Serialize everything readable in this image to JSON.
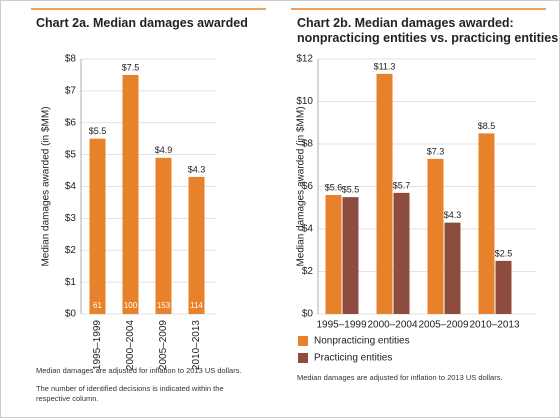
{
  "chart_data": [
    {
      "type": "bar",
      "title": [
        "Chart 2a. Median damages awarded"
      ],
      "ylabel": "Median damages awarded (in $MM)",
      "categories": [
        "1995–1999",
        "2000–2004",
        "2005–2009",
        "2010–2013"
      ],
      "values": [
        5.5,
        7.5,
        4.9,
        4.3
      ],
      "value_labels": [
        "$5.5",
        "$7.5",
        "$4.9",
        "$4.3"
      ],
      "counts": [
        61,
        100,
        153,
        114
      ],
      "color": "#e8822a",
      "ylim": [
        0,
        8
      ],
      "yticks": [
        {
          "value": 0,
          "label": "$0"
        },
        {
          "value": 1,
          "label": "$1"
        },
        {
          "value": 2,
          "label": "$2"
        },
        {
          "value": 3,
          "label": "$3"
        },
        {
          "value": 4,
          "label": "$4"
        },
        {
          "value": 5,
          "label": "$5"
        },
        {
          "value": 6,
          "label": "$6"
        },
        {
          "value": 7,
          "label": "$7"
        },
        {
          "value": 8,
          "label": "$8"
        }
      ],
      "grid": true,
      "notes": [
        "Median damages are adjusted for inflation to 2013 US dollars.",
        "The number of identified decisions is indicated within the respective column."
      ]
    },
    {
      "type": "grouped_bar",
      "title": [
        "Chart 2b. Median damages awarded:",
        "nonpracticing entities vs. practicing entities"
      ],
      "ylabel": "Median damages awarded (in $MM)",
      "categories": [
        "1995–1999",
        "2000–2004",
        "2005–2009",
        "2010–2013"
      ],
      "series": [
        {
          "name": "Nonpracticing entities",
          "color": "#e8822a",
          "values": [
            5.6,
            11.3,
            7.3,
            8.5
          ],
          "value_labels": [
            "$5.6",
            "$11.3",
            "$7.3",
            "$8.5"
          ]
        },
        {
          "name": "Practicing entities",
          "color": "#8e4c3f",
          "values": [
            5.5,
            5.7,
            4.3,
            2.5
          ],
          "value_labels": [
            "$5.5",
            "$5.7",
            "$4.3",
            "$2.5"
          ]
        }
      ],
      "ylim": [
        0,
        12
      ],
      "yticks": [
        {
          "value": 0,
          "label": "$0"
        },
        {
          "value": 2,
          "label": "$2"
        },
        {
          "value": 4,
          "label": "$4"
        },
        {
          "value": 6,
          "label": "$6"
        },
        {
          "value": 8,
          "label": "$8"
        },
        {
          "value": 10,
          "label": "$10"
        },
        {
          "value": 12,
          "label": "$12"
        }
      ],
      "grid": true,
      "notes": [
        "Median damages are adjusted for inflation to 2013 US dollars."
      ]
    }
  ]
}
